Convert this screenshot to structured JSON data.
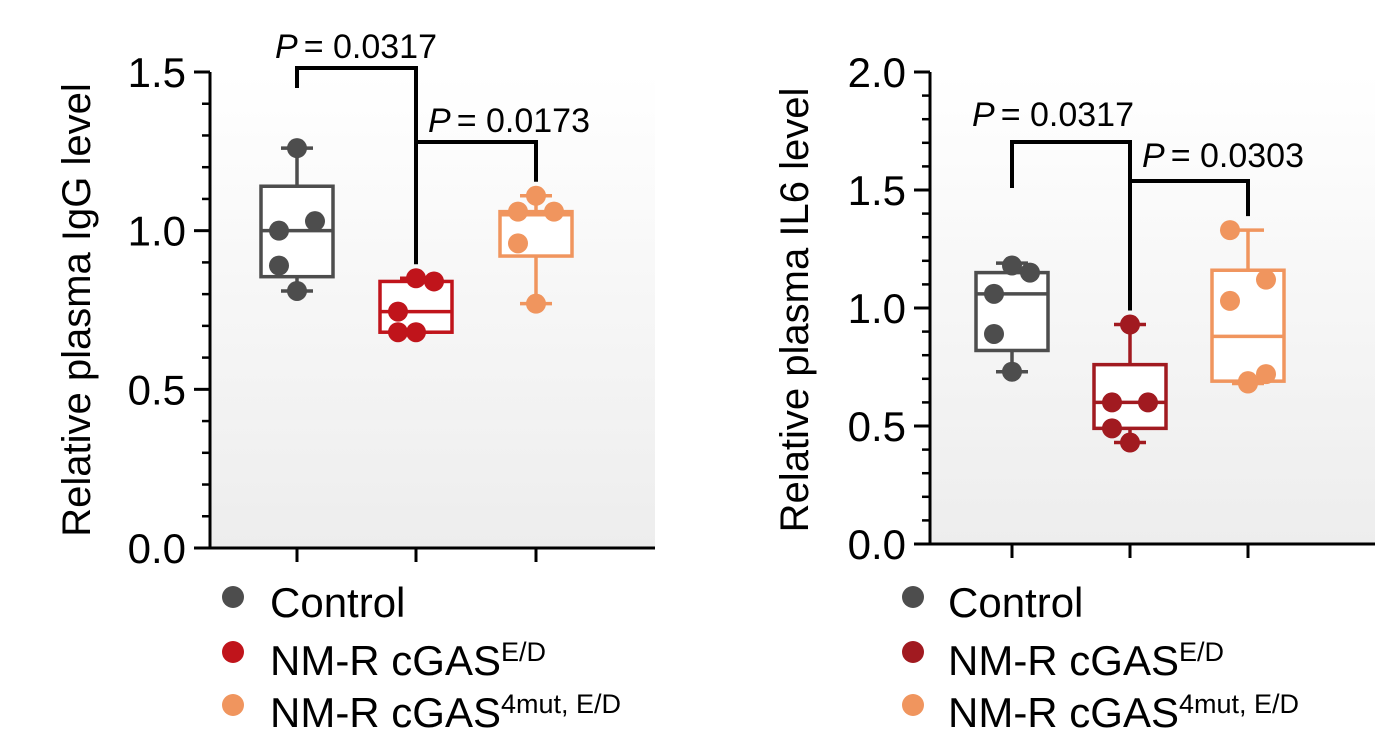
{
  "chart_data": [
    {
      "type": "box",
      "title": "",
      "xlabel": "",
      "ylabel": "Relative plasma IgG level",
      "ylim": [
        0,
        1.5
      ],
      "yticks": [
        "0.0",
        "0.5",
        "1.0",
        "1.5"
      ],
      "grid": false,
      "legend_position": "bottom",
      "groups": [
        {
          "name_main": "Control",
          "name_sup": "",
          "color": "#4d4d4d",
          "min": 0.81,
          "q1": 0.855,
          "median": 1.0,
          "q3": 1.14,
          "max": 1.26,
          "points": [
            1.26,
            1.03,
            1.0,
            0.89,
            0.81
          ]
        },
        {
          "name_main": "NM-R cGAS",
          "name_sup": "E/D",
          "color": "#c0141b",
          "min": 0.68,
          "q1": 0.68,
          "median": 0.745,
          "q3": 0.84,
          "max": 0.85,
          "points": [
            0.85,
            0.84,
            0.745,
            0.68,
            0.68
          ]
        },
        {
          "name_main": "NM-R cGAS",
          "name_sup": "4mut, E/D",
          "color": "#f0955e",
          "min": 0.77,
          "q1": 0.92,
          "median": 1.05,
          "q3": 1.06,
          "max": 1.11,
          "points": [
            1.11,
            1.06,
            1.06,
            0.96,
            0.77
          ]
        }
      ],
      "comparisons": [
        {
          "from": 0,
          "to": 1,
          "label_p": "P",
          "label_value": "= 0.0317"
        },
        {
          "from": 1,
          "to": 2,
          "label_p": "P",
          "label_value": "= 0.0173"
        }
      ]
    },
    {
      "type": "box",
      "title": "",
      "xlabel": "",
      "ylabel": "Relative plasma IL6 level",
      "ylim": [
        0,
        2.0
      ],
      "yticks": [
        "0.0",
        "0.5",
        "1.0",
        "1.5",
        "2.0"
      ],
      "grid": false,
      "legend_position": "bottom",
      "groups": [
        {
          "name_main": "Control",
          "name_sup": "",
          "color": "#4d4d4d",
          "min": 0.73,
          "q1": 0.82,
          "median": 1.06,
          "q3": 1.15,
          "max": 1.19,
          "points": [
            1.18,
            1.15,
            1.06,
            0.89,
            0.73
          ]
        },
        {
          "name_main": "NM-R cGAS",
          "name_sup": "E/D",
          "color": "#a11a20",
          "min": 0.43,
          "q1": 0.49,
          "median": 0.6,
          "q3": 0.76,
          "max": 0.93,
          "points": [
            0.93,
            0.6,
            0.6,
            0.49,
            0.43
          ]
        },
        {
          "name_main": "NM-R cGAS",
          "name_sup": "4mut, E/D",
          "color": "#f0955e",
          "min": 0.68,
          "q1": 0.69,
          "median": 0.88,
          "q3": 1.16,
          "max": 1.33,
          "points": [
            1.33,
            1.12,
            1.03,
            0.72,
            0.69,
            0.68
          ]
        }
      ],
      "comparisons": [
        {
          "from": 0,
          "to": 1,
          "label_p": "P",
          "label_value": "= 0.0317"
        },
        {
          "from": 1,
          "to": 2,
          "label_p": "P",
          "label_value": "= 0.0303"
        }
      ]
    }
  ]
}
